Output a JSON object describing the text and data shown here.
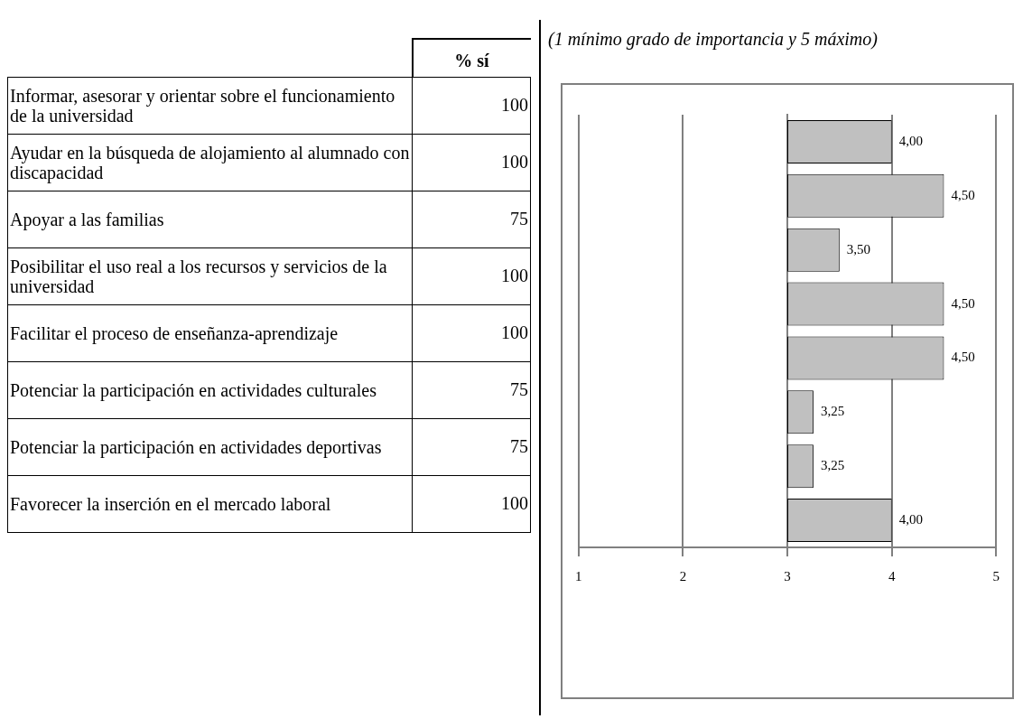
{
  "chart_data": [
    {
      "type": "other",
      "title": "% sí",
      "categories": [
        "Informar, asesorar y orientar sobre el funcionamiento de la universidad",
        "Ayudar en la búsqueda de alojamiento al alumnado con discapacidad",
        "Apoyar a las familias",
        "Posibilitar el uso real a los recursos y servicios de la universidad",
        "Facilitar el proceso de enseñanza-aprendizaje",
        "Potenciar la participación en actividades culturales",
        "Potenciar la participación en actividades deportivas",
        "Favorecer la inserción en el mercado laboral"
      ],
      "values": [
        100,
        100,
        75,
        100,
        100,
        75,
        75,
        100
      ],
      "data_labels": true
    },
    {
      "type": "bar",
      "orientation": "horizontal",
      "title": "(1 mínimo grado de importancia y 5 máximo)",
      "categories": [
        null,
        null,
        null,
        null,
        null,
        null,
        null,
        null
      ],
      "base": [
        3,
        3,
        3,
        3,
        3,
        3,
        3,
        3
      ],
      "values": [
        1,
        1.5,
        0.5,
        1.5,
        1.5,
        0.25,
        0.25,
        1
      ],
      "value_labels": [
        "4,00",
        "4,50",
        "3,50",
        "4,50",
        "4,50",
        "3,25",
        "3,25",
        "4,00"
      ],
      "color": "#c0c0c0",
      "xlim": [
        1,
        5
      ],
      "xticks": [
        1,
        2,
        3,
        4,
        5
      ],
      "grid": "x"
    }
  ]
}
